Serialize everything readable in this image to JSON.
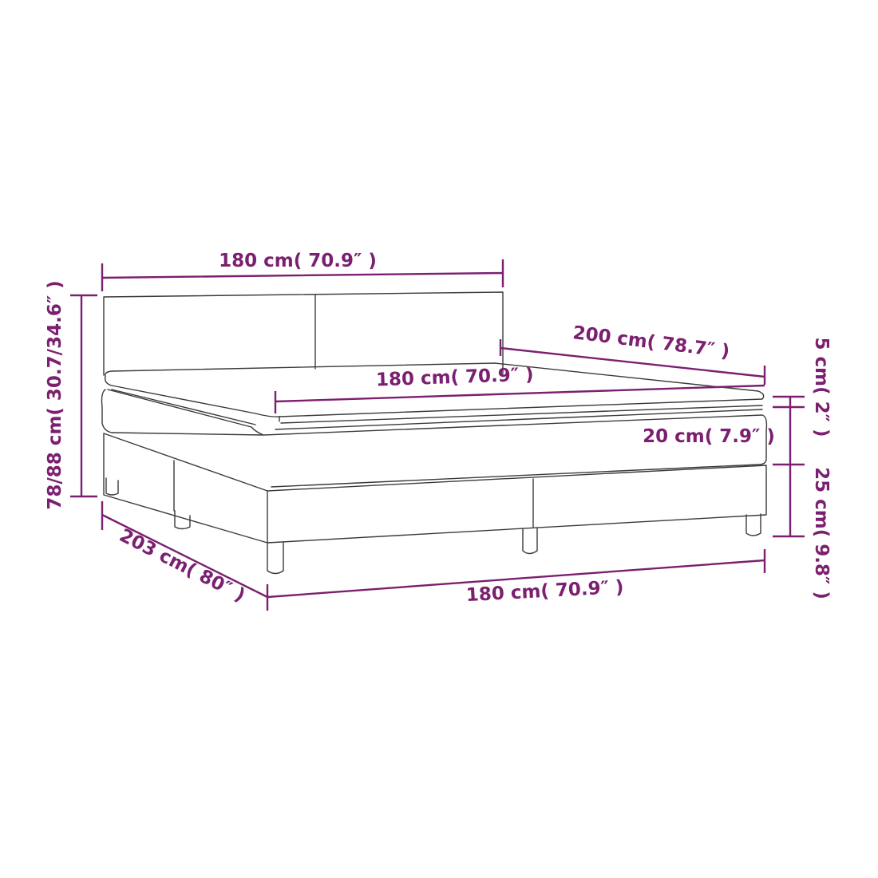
{
  "colors": {
    "dimension": "#7b1f70",
    "outline": "#3a3a3a",
    "background": "#ffffff"
  },
  "dimensions": {
    "headboard_width": "180 cm( 70.9″ )",
    "mattress_width": "180 cm( 70.9″ )",
    "length": "200 cm( 78.7″ )",
    "total_height": "78/88 cm( 30.7/34.6″ )",
    "topper_height": "5 cm( 2″ )",
    "mattress_height": "20 cm( 7.9″ )",
    "base_height": "25 cm( 9.8″ )",
    "total_length": "203 cm( 80″ )",
    "base_width": "180 cm( 70.9″ )"
  }
}
